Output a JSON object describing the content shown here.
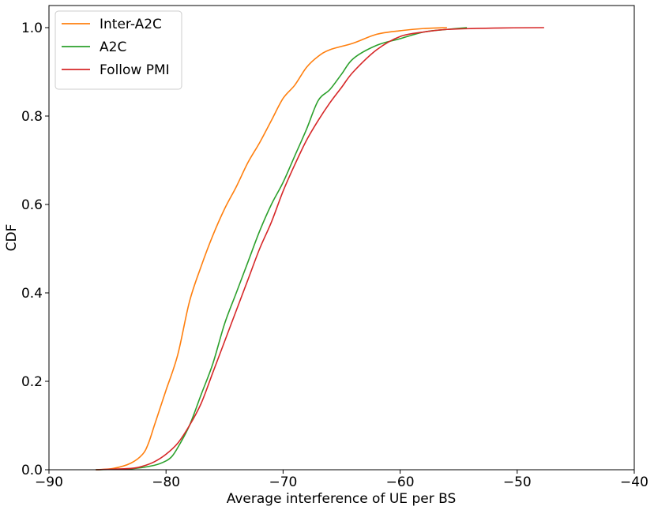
{
  "chart_data": {
    "type": "line",
    "xlabel": "Average interference of UE per BS",
    "ylabel": "CDF",
    "xlim": [
      -90,
      -40
    ],
    "ylim": [
      0.0,
      1.05
    ],
    "x_ticks": [
      -90,
      -80,
      -70,
      -60,
      -50,
      -40
    ],
    "x_tick_labels": [
      "−90",
      "−80",
      "−70",
      "−60",
      "−50",
      "−40"
    ],
    "y_ticks": [
      0.0,
      0.2,
      0.4,
      0.6,
      0.8,
      1.0
    ],
    "y_tick_labels": [
      "0.0",
      "0.2",
      "0.4",
      "0.6",
      "0.8",
      "1.0"
    ],
    "grid": false,
    "legend_position": "top-left",
    "series": [
      {
        "name": "Inter-A2C",
        "color": "#ff7f0e",
        "x": [
          -86.0,
          -84.5,
          -83.0,
          -82.0,
          -81.5,
          -81.0,
          -80.5,
          -80.0,
          -79.0,
          -78.0,
          -77.0,
          -76.0,
          -75.0,
          -74.0,
          -73.0,
          -72.0,
          -71.0,
          -70.0,
          -69.0,
          -68.0,
          -67.0,
          -66.0,
          -64.0,
          -62.0,
          -60.0,
          -58.0,
          -56.0
        ],
        "y": [
          0.0,
          0.003,
          0.015,
          0.035,
          0.06,
          0.1,
          0.14,
          0.18,
          0.26,
          0.38,
          0.46,
          0.53,
          0.59,
          0.64,
          0.695,
          0.74,
          0.79,
          0.84,
          0.87,
          0.91,
          0.935,
          0.95,
          0.965,
          0.985,
          0.993,
          0.998,
          1.0
        ]
      },
      {
        "name": "A2C",
        "color": "#2ca02c",
        "x": [
          -86.0,
          -83.0,
          -81.0,
          -80.0,
          -79.5,
          -79.0,
          -78.0,
          -77.0,
          -76.0,
          -75.0,
          -74.0,
          -73.0,
          -72.0,
          -71.0,
          -70.0,
          -69.0,
          -68.0,
          -67.0,
          -66.0,
          -65.0,
          -64.0,
          -62.0,
          -60.0,
          -58.0,
          -56.0,
          -54.3
        ],
        "y": [
          0.0,
          0.002,
          0.01,
          0.02,
          0.03,
          0.05,
          0.1,
          0.17,
          0.24,
          0.33,
          0.4,
          0.47,
          0.54,
          0.6,
          0.65,
          0.71,
          0.77,
          0.835,
          0.86,
          0.895,
          0.93,
          0.96,
          0.975,
          0.99,
          0.996,
          1.0
        ]
      },
      {
        "name": "Follow PMI",
        "color": "#d62728",
        "x": [
          -86.0,
          -83.0,
          -82.0,
          -81.0,
          -80.0,
          -79.0,
          -78.0,
          -77.0,
          -76.0,
          -75.0,
          -74.0,
          -73.0,
          -72.0,
          -71.0,
          -70.0,
          -69.0,
          -68.0,
          -67.0,
          -66.0,
          -65.0,
          -64.0,
          -62.0,
          -60.0,
          -58.0,
          -56.0,
          -52.0,
          -47.7
        ],
        "y": [
          0.0,
          0.003,
          0.008,
          0.018,
          0.035,
          0.06,
          0.1,
          0.15,
          0.22,
          0.29,
          0.36,
          0.43,
          0.5,
          0.56,
          0.63,
          0.69,
          0.745,
          0.79,
          0.83,
          0.865,
          0.9,
          0.95,
          0.98,
          0.99,
          0.996,
          0.999,
          1.0
        ]
      }
    ]
  }
}
